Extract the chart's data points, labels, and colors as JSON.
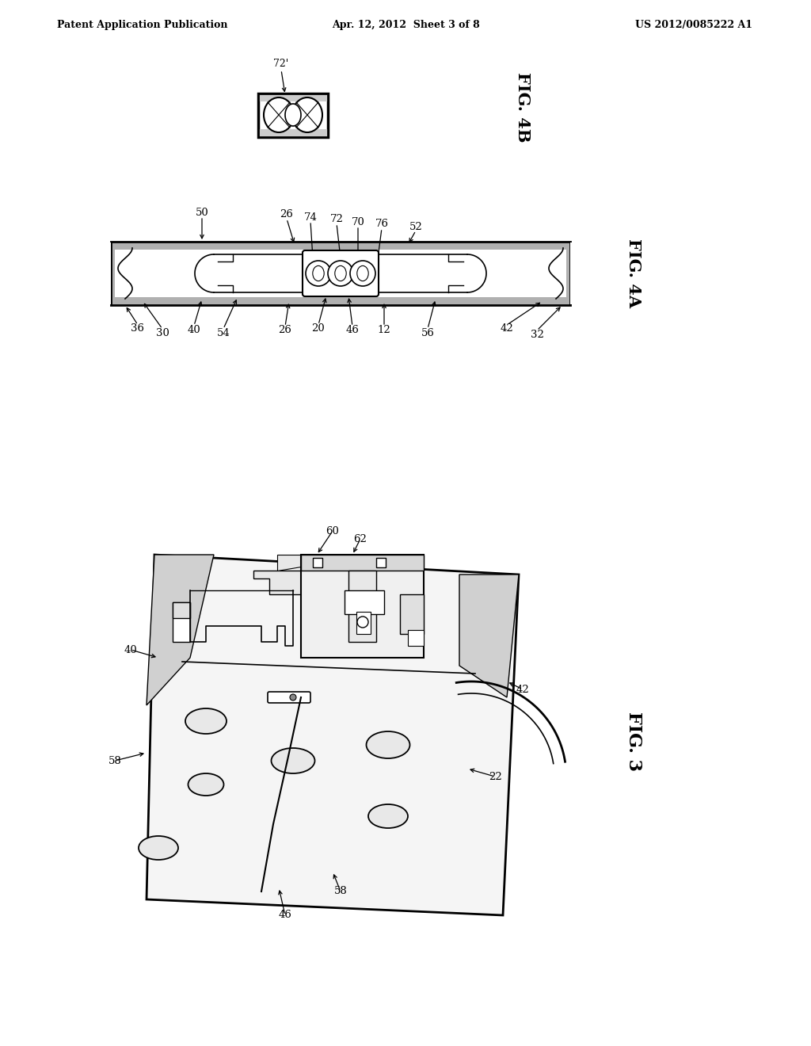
{
  "background_color": "#ffffff",
  "header_left": "Patent Application Publication",
  "header_center": "Apr. 12, 2012  Sheet 3 of 8",
  "header_right": "US 2012/0085222 A1",
  "fig4b_label": "FIG. 4B",
  "fig4a_label": "FIG. 4A",
  "fig3_label": "FIG. 3",
  "line_color": "#000000"
}
